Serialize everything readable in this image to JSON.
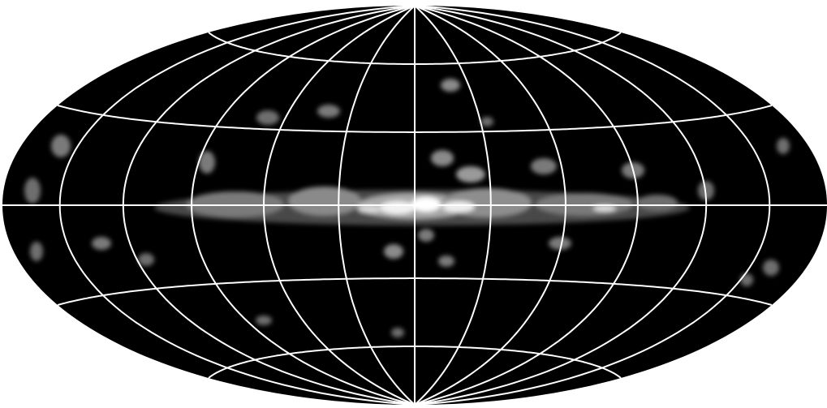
{
  "map": {
    "projection": "aitoff-hammer",
    "background_color": "#ffffff",
    "sky_color": "#000000",
    "grid_color": "#ffffff",
    "emission_colors": {
      "faint": "#6e6e6e",
      "medium": "#a8a8a8",
      "bright": "#f2f2f2"
    },
    "graticule": {
      "meridian_spacing_deg": 30,
      "parallel_spacing_deg": 30,
      "meridians_deg": [
        -150,
        -120,
        -90,
        -60,
        -30,
        0,
        30,
        60,
        90,
        120,
        150
      ],
      "parallels_deg": [
        -60,
        -30,
        0,
        30,
        60
      ]
    }
  }
}
